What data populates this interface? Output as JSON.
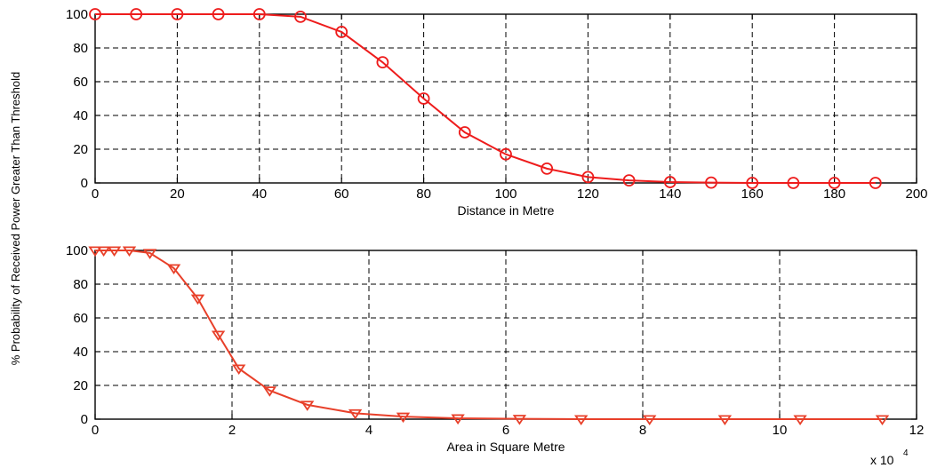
{
  "figure": {
    "shared_ylabel": "% Probability of Received Power Greater Than Threshold"
  },
  "chart_data": [
    {
      "type": "line",
      "xlabel": "Distance in Metre",
      "xlim": [
        0,
        200
      ],
      "ylim": [
        0,
        100
      ],
      "xticks": [
        0,
        20,
        40,
        60,
        80,
        100,
        120,
        140,
        160,
        180,
        200
      ],
      "yticks": [
        0,
        20,
        40,
        60,
        80,
        100
      ],
      "grid": true,
      "marker": "circle",
      "color": "#ee1c1c",
      "series": [
        {
          "x": [
            0,
            10,
            20,
            30,
            40,
            50,
            60,
            70,
            80,
            90,
            100,
            110,
            120,
            130,
            140,
            150,
            160,
            170,
            180,
            190
          ],
          "values": [
            100,
            100,
            100,
            100,
            100,
            98.5,
            89.5,
            71.5,
            50,
            30,
            17,
            8.5,
            3.5,
            1.5,
            0.5,
            0.2,
            0,
            0,
            0,
            0
          ]
        }
      ]
    },
    {
      "type": "line",
      "xlabel": "Area in Square Metre",
      "xlim": [
        0,
        120000
      ],
      "ylim": [
        0,
        100
      ],
      "xticks": [
        0,
        20000,
        40000,
        60000,
        80000,
        100000,
        120000
      ],
      "xtick_labels": [
        "0",
        "2",
        "4",
        "6",
        "8",
        "10",
        "12"
      ],
      "x_multiplier_label": "x 10",
      "x_multiplier_exp": "4",
      "yticks": [
        0,
        20,
        40,
        60,
        80,
        100
      ],
      "grid": true,
      "marker": "triangle-down",
      "color": "#e8402a",
      "series": [
        {
          "x": [
            0,
            1250,
            2800,
            5000,
            8000,
            11500,
            15000,
            18000,
            21000,
            25500,
            31000,
            38000,
            45000,
            53000,
            62000,
            71000,
            81000,
            92000,
            103000,
            115000
          ],
          "values": [
            100,
            100,
            100,
            100,
            98.5,
            89.5,
            71.5,
            50,
            30,
            17,
            8.5,
            3.5,
            1.5,
            0.5,
            0.2,
            0,
            0,
            0,
            0,
            0
          ]
        }
      ]
    }
  ]
}
